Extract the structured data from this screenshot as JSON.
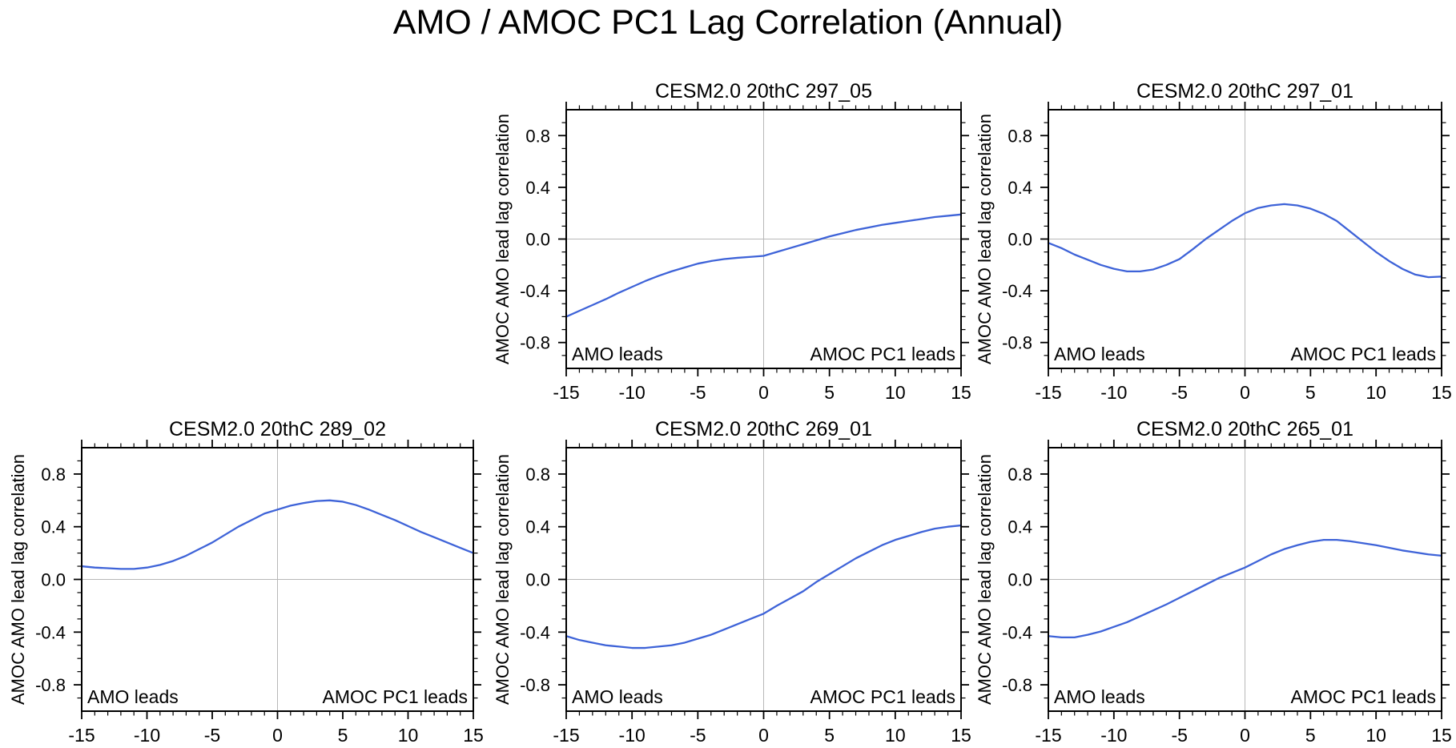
{
  "page_title": "AMO / AMOC PC1 Lag Correlation (Annual)",
  "colors": {
    "curve": "#3E63D8",
    "gridline": "#b8b8b8",
    "axis": "#000000",
    "background": "#ffffff"
  },
  "chart_data": {
    "type": "line",
    "suptitle": "AMO / AMOC PC1 Lag Correlation (Annual)",
    "ylabel": "AMOC AMO lead lag correlation",
    "xlim": [
      -15,
      15
    ],
    "ylim": [
      -1,
      1
    ],
    "xtick_labels": [
      "-15",
      "-10",
      "-5",
      "0",
      "5",
      "10",
      "15"
    ],
    "xticks_major": [
      -15,
      -10,
      -5,
      0,
      5,
      10,
      15
    ],
    "xticks_minor_step": 1,
    "ytick_labels": [
      "0.8",
      "0.4",
      "0.0",
      "-0.4",
      "-0.8"
    ],
    "yticks_major": [
      0.8,
      0.4,
      0.0,
      -0.4,
      -0.8
    ],
    "yticks_minor_step": 0.1,
    "grid": {
      "x_zero_line": true,
      "y_zero_line": true
    },
    "legend_position": "none",
    "annotations": {
      "bottom_left": "AMO leads",
      "bottom_right": "AMOC PC1 leads"
    },
    "x": [
      -15,
      -14,
      -13,
      -12,
      -11,
      -10,
      -9,
      -8,
      -7,
      -6,
      -5,
      -4,
      -3,
      -2,
      -1,
      0,
      1,
      2,
      3,
      4,
      5,
      6,
      7,
      8,
      9,
      10,
      11,
      12,
      13,
      14,
      15
    ],
    "plots": [
      {
        "title": "CESM2.0 20thC 297_05",
        "row": 0,
        "col": 1,
        "values": [
          -0.6,
          -0.555,
          -0.51,
          -0.465,
          -0.415,
          -0.37,
          -0.325,
          -0.285,
          -0.25,
          -0.22,
          -0.19,
          -0.17,
          -0.155,
          -0.145,
          -0.138,
          -0.13,
          -0.1,
          -0.07,
          -0.04,
          -0.01,
          0.02,
          0.045,
          0.07,
          0.09,
          0.11,
          0.125,
          0.14,
          0.155,
          0.17,
          0.18,
          0.19
        ]
      },
      {
        "title": "CESM2.0 20thC 297_01",
        "row": 0,
        "col": 2,
        "values": [
          -0.03,
          -0.07,
          -0.12,
          -0.16,
          -0.2,
          -0.23,
          -0.25,
          -0.25,
          -0.235,
          -0.2,
          -0.155,
          -0.08,
          0.0,
          0.07,
          0.14,
          0.2,
          0.24,
          0.26,
          0.27,
          0.26,
          0.235,
          0.195,
          0.14,
          0.06,
          -0.02,
          -0.1,
          -0.17,
          -0.23,
          -0.275,
          -0.295,
          -0.29
        ]
      },
      {
        "title": "CESM2.0 20thC 289_02",
        "row": 1,
        "col": 0,
        "values": [
          0.1,
          0.09,
          0.085,
          0.08,
          0.08,
          0.09,
          0.11,
          0.14,
          0.18,
          0.23,
          0.28,
          0.34,
          0.4,
          0.45,
          0.5,
          0.53,
          0.56,
          0.58,
          0.595,
          0.6,
          0.59,
          0.565,
          0.53,
          0.49,
          0.45,
          0.405,
          0.36,
          0.32,
          0.28,
          0.24,
          0.2
        ]
      },
      {
        "title": "CESM2.0 20thC 269_01",
        "row": 1,
        "col": 1,
        "values": [
          -0.43,
          -0.46,
          -0.48,
          -0.5,
          -0.51,
          -0.52,
          -0.52,
          -0.51,
          -0.5,
          -0.48,
          -0.45,
          -0.42,
          -0.38,
          -0.34,
          -0.3,
          -0.26,
          -0.2,
          -0.145,
          -0.09,
          -0.02,
          0.04,
          0.1,
          0.16,
          0.21,
          0.26,
          0.3,
          0.33,
          0.36,
          0.385,
          0.4,
          0.41
        ]
      },
      {
        "title": "CESM2.0 20thC 265_01",
        "row": 1,
        "col": 2,
        "values": [
          -0.43,
          -0.44,
          -0.44,
          -0.42,
          -0.395,
          -0.36,
          -0.325,
          -0.28,
          -0.235,
          -0.19,
          -0.14,
          -0.09,
          -0.04,
          0.01,
          0.05,
          0.09,
          0.14,
          0.19,
          0.23,
          0.26,
          0.285,
          0.3,
          0.3,
          0.29,
          0.275,
          0.26,
          0.24,
          0.22,
          0.205,
          0.19,
          0.18
        ]
      }
    ]
  }
}
